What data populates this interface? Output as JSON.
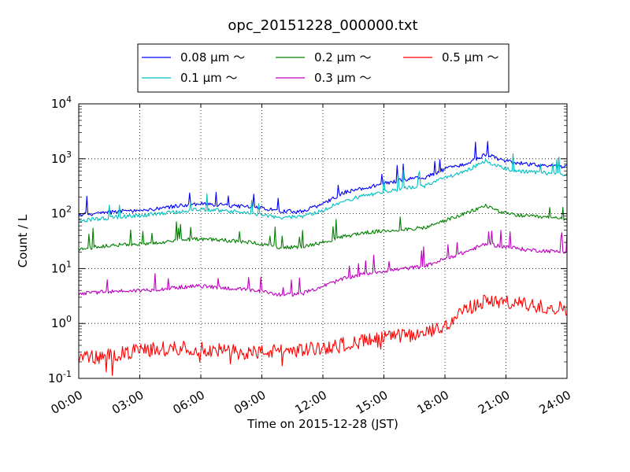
{
  "chart_data": {
    "type": "line",
    "title": "opc_20151228_000000.txt",
    "xlabel": "Time on 2015-12-28 (JST)",
    "ylabel": "Count / L",
    "yscale": "log",
    "xlim": [
      "00:00",
      "24:00"
    ],
    "ylim": [
      0.1,
      10000
    ],
    "grid": true,
    "legend_position": "top-center",
    "x_tick_labels": [
      "00:00",
      "03:00",
      "06:00",
      "09:00",
      "12:00",
      "15:00",
      "18:00",
      "21:00",
      "24:00"
    ],
    "y_tick_labels": [
      {
        "base": "10",
        "exp": "-1"
      },
      {
        "base": "10",
        "exp": "0"
      },
      {
        "base": "10",
        "exp": "1"
      },
      {
        "base": "10",
        "exp": "2"
      },
      {
        "base": "10",
        "exp": "3"
      },
      {
        "base": "10",
        "exp": "4"
      }
    ],
    "x": [
      "00:00",
      "01:00",
      "02:00",
      "03:00",
      "04:00",
      "05:00",
      "06:00",
      "07:00",
      "08:00",
      "09:00",
      "10:00",
      "11:00",
      "12:00",
      "13:00",
      "14:00",
      "15:00",
      "16:00",
      "17:00",
      "18:00",
      "19:00",
      "20:00",
      "21:00",
      "22:00",
      "23:00",
      "24:00"
    ],
    "series": [
      {
        "name": "0.08 μm ～",
        "color": "#0000ff",
        "values": [
          95,
          100,
          110,
          115,
          125,
          140,
          150,
          145,
          135,
          125,
          110,
          110,
          150,
          240,
          290,
          350,
          420,
          450,
          650,
          800,
          1200,
          900,
          800,
          750,
          700
        ]
      },
      {
        "name": "0.1 μm ～",
        "color": "#00bfbf",
        "values": [
          75,
          80,
          88,
          92,
          100,
          110,
          120,
          115,
          105,
          95,
          85,
          88,
          115,
          170,
          210,
          250,
          290,
          320,
          450,
          600,
          900,
          650,
          580,
          550,
          520
        ]
      },
      {
        "name": "0.2 μm ～",
        "color": "#008000",
        "values": [
          23,
          25,
          27,
          28,
          30,
          33,
          35,
          33,
          31,
          28,
          24,
          25,
          30,
          38,
          45,
          48,
          52,
          55,
          75,
          100,
          140,
          100,
          90,
          85,
          80
        ]
      },
      {
        "name": "0.3 μm ～",
        "color": "#bf00bf",
        "values": [
          3.5,
          3.7,
          3.9,
          4.0,
          4.2,
          4.6,
          4.8,
          4.5,
          4.2,
          3.8,
          3.3,
          3.5,
          4.8,
          6.5,
          8.0,
          9.0,
          10,
          11,
          15,
          20,
          28,
          25,
          22,
          21,
          20
        ]
      },
      {
        "name": "0.5 μm ～",
        "color": "#ff0000",
        "values": [
          0.25,
          0.24,
          0.28,
          0.32,
          0.35,
          0.36,
          0.34,
          0.32,
          0.3,
          0.3,
          0.32,
          0.33,
          0.36,
          0.42,
          0.48,
          0.55,
          0.6,
          0.65,
          0.9,
          1.8,
          2.6,
          2.4,
          2.2,
          2.0,
          1.9
        ]
      }
    ]
  }
}
